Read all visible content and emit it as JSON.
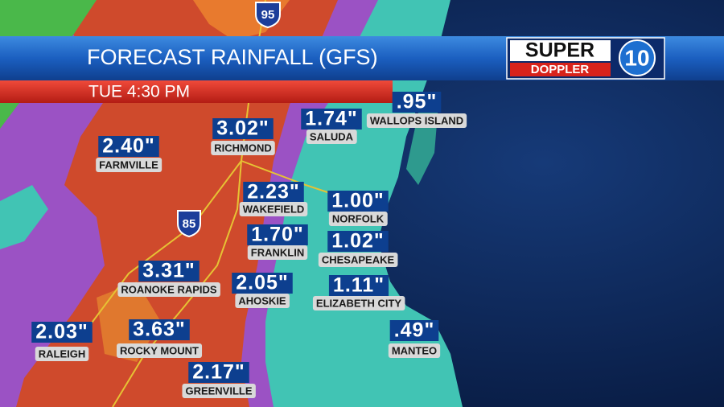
{
  "header": {
    "title": "FORECAST RAINFALL (GFS)",
    "time": "TUE 4:30 PM",
    "logo": {
      "top": "SUPER",
      "bottom": "DOPPLER",
      "number": "10"
    }
  },
  "highways": [
    "95",
    "85"
  ],
  "locations": [
    {
      "value": "3.02\"",
      "name": "RICHMOND"
    },
    {
      "value": "1.74\"",
      "name": "SALUDA"
    },
    {
      "value": ".95\"",
      "name": "WALLOPS ISLAND"
    },
    {
      "value": "2.40\"",
      "name": "FARMVILLE"
    },
    {
      "value": "2.23\"",
      "name": "WAKEFIELD"
    },
    {
      "value": "1.00\"",
      "name": "NORFOLK"
    },
    {
      "value": "1.70\"",
      "name": "FRANKLIN"
    },
    {
      "value": "1.02\"",
      "name": "CHESAPEAKE"
    },
    {
      "value": "3.31\"",
      "name": "ROANOKE RAPIDS"
    },
    {
      "value": "2.05\"",
      "name": "AHOSKIE"
    },
    {
      "value": "1.11\"",
      "name": "ELIZABETH CITY"
    },
    {
      "value": "2.03\"",
      "name": "RALEIGH"
    },
    {
      "value": "3.63\"",
      "name": "ROCKY MOUNT"
    },
    {
      "value": ".49\"",
      "name": "MANTEO"
    },
    {
      "value": "2.17\"",
      "name": "GREENVILLE"
    }
  ]
}
